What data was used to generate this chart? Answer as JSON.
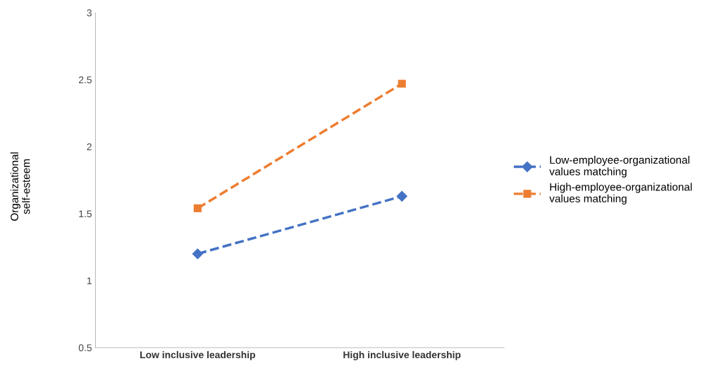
{
  "chart_data": {
    "type": "line",
    "ylabel": "Organizational\nself-esteem",
    "categories": [
      "Low inclusive leadership",
      "High inclusive leadership"
    ],
    "series": [
      {
        "name": "Low-employee-organizational\nvalues matching",
        "color": "#4472c4",
        "values": [
          1.2,
          1.63
        ],
        "marker": "diamond"
      },
      {
        "name": "High-employee-organizational\nvalues matching",
        "color": "#ed7d31",
        "values": [
          1.54,
          2.47
        ],
        "marker": "square"
      }
    ],
    "ylim": [
      0.5,
      3
    ],
    "yticks": [
      0.5,
      1,
      1.5,
      2,
      2.5,
      3
    ],
    "line_style": "dashed",
    "grid": false,
    "legend": "right"
  }
}
